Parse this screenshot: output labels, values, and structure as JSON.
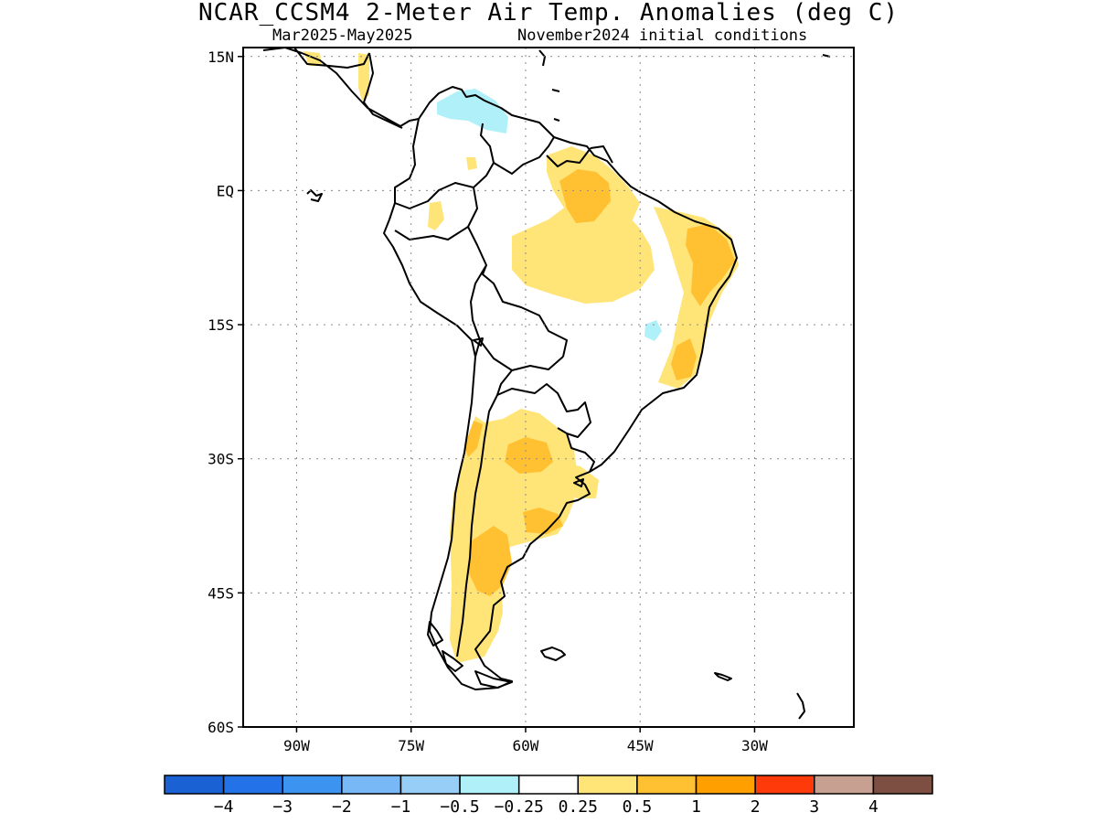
{
  "title": "NCAR_CCSM4 2-Meter Air Temp. Anomalies (deg C)",
  "subtitle_left": "Mar2025-May2025",
  "subtitle_right": "November2024 initial conditions",
  "map": {
    "lon_range": [
      -97,
      -17
    ],
    "lat_range": [
      -60,
      16
    ],
    "lat_ticks": [
      {
        "value": 15,
        "label": "15N"
      },
      {
        "value": 0,
        "label": "EQ"
      },
      {
        "value": -15,
        "label": "15S"
      },
      {
        "value": -30,
        "label": "30S"
      },
      {
        "value": -45,
        "label": "45S"
      },
      {
        "value": -60,
        "label": "60S"
      }
    ],
    "lon_ticks": [
      {
        "value": -90,
        "label": "90W"
      },
      {
        "value": -75,
        "label": "75W"
      },
      {
        "value": -60,
        "label": "60W"
      },
      {
        "value": -45,
        "label": "45W"
      },
      {
        "value": -30,
        "label": "30W"
      }
    ],
    "grid": "dotted"
  },
  "colorbar": {
    "colors": [
      "#1a62d4",
      "#2472e8",
      "#3d93f0",
      "#78b8f7",
      "#96cef8",
      "#b0f0f8",
      "#ffffff",
      "#ffe478",
      "#ffc132",
      "#ffa000",
      "#ff3a0a",
      "#c8a092",
      "#7d4f42"
    ],
    "labels": [
      "-4",
      "-3",
      "-2",
      "-1",
      "-0.5",
      "-0.25",
      "0.25",
      "0.5",
      "1",
      "2",
      "3",
      "4"
    ]
  }
}
